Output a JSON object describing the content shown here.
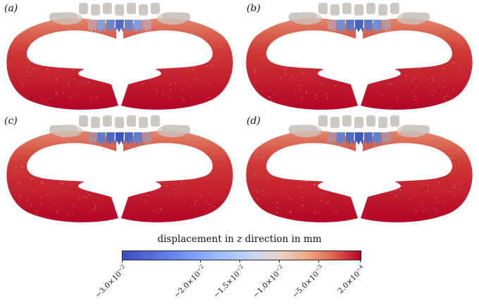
{
  "panels": [
    {
      "id": "a",
      "label": "(a)",
      "center_intensity": 0.55
    },
    {
      "id": "b",
      "label": "(b)",
      "center_intensity": 0.75
    },
    {
      "id": "c",
      "label": "(c)",
      "center_intensity": 1.0
    },
    {
      "id": "d",
      "label": "(d)",
      "center_intensity": 0.95
    }
  ],
  "colorbar": {
    "title_prefix": "displacement in ",
    "title_var": "z",
    "title_suffix": " direction in mm",
    "min": -0.03,
    "max": 0.0002,
    "ticks": [
      {
        "value": -0.03,
        "mantissa": "−3.0",
        "exp": "−2"
      },
      {
        "value": -0.02,
        "mantissa": "−2.0",
        "exp": "−2"
      },
      {
        "value": -0.015,
        "mantissa": "−1.5",
        "exp": "−2"
      },
      {
        "value": -0.01,
        "mantissa": "−1.0",
        "exp": "−2"
      },
      {
        "value": -0.005,
        "mantissa": "−5.0",
        "exp": "−3"
      },
      {
        "value": 0.0002,
        "mantissa": "2.0",
        "exp": "−4"
      }
    ]
  },
  "colors": {
    "dark_red": "#b40426",
    "red": "#cf3a36",
    "orange": "#e3876a",
    "grey": "#cdc8c3",
    "light_blue": "#9fb6e0",
    "blue": "#3b55b8"
  }
}
